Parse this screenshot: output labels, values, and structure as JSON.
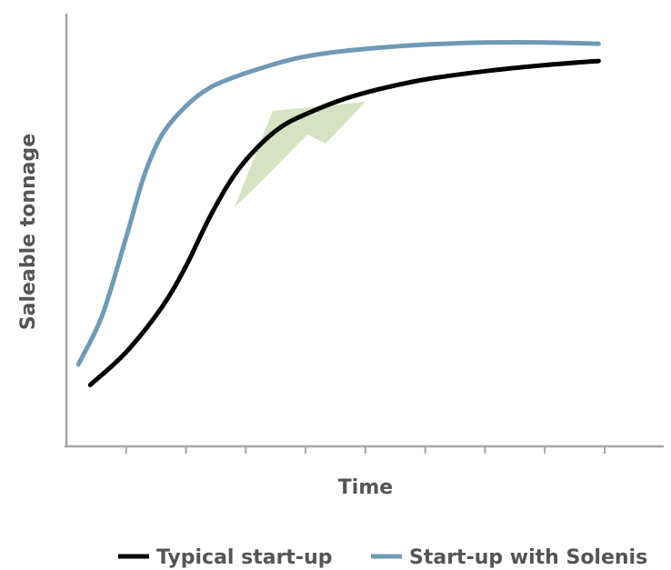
{
  "chart_data": {
    "type": "line",
    "title": "",
    "xlabel": "Time",
    "ylabel": "Saleable tonnage",
    "xlim": [
      0,
      9
    ],
    "ylim": [
      0,
      10
    ],
    "x_ticks": 9,
    "grid": false,
    "legend_position": "bottom",
    "colors": {
      "axis": "#a6a6a6",
      "text": "#555555",
      "arrow": "#d6e2c2"
    },
    "series": [
      {
        "name": "Typical start-up",
        "color": "#000000",
        "x": [
          0.4,
          1.0,
          1.6,
          2.0,
          2.4,
          2.8,
          3.2,
          3.6,
          4.0,
          4.6,
          5.2,
          6.0,
          7.0,
          8.0,
          8.9
        ],
        "y": [
          1.5,
          2.3,
          3.4,
          4.4,
          5.6,
          6.6,
          7.3,
          7.8,
          8.1,
          8.45,
          8.7,
          8.95,
          9.15,
          9.3,
          9.4
        ]
      },
      {
        "name": "Start-up with Solenis",
        "color": "#6f9ab7",
        "x": [
          0.2,
          0.6,
          1.0,
          1.3,
          1.6,
          2.0,
          2.4,
          2.8,
          3.2,
          3.8,
          4.4,
          5.2,
          6.0,
          7.0,
          8.0,
          8.9
        ],
        "y": [
          2.0,
          3.2,
          5.1,
          6.6,
          7.6,
          8.3,
          8.75,
          9.0,
          9.2,
          9.45,
          9.6,
          9.72,
          9.8,
          9.85,
          9.85,
          9.82
        ]
      }
    ]
  }
}
